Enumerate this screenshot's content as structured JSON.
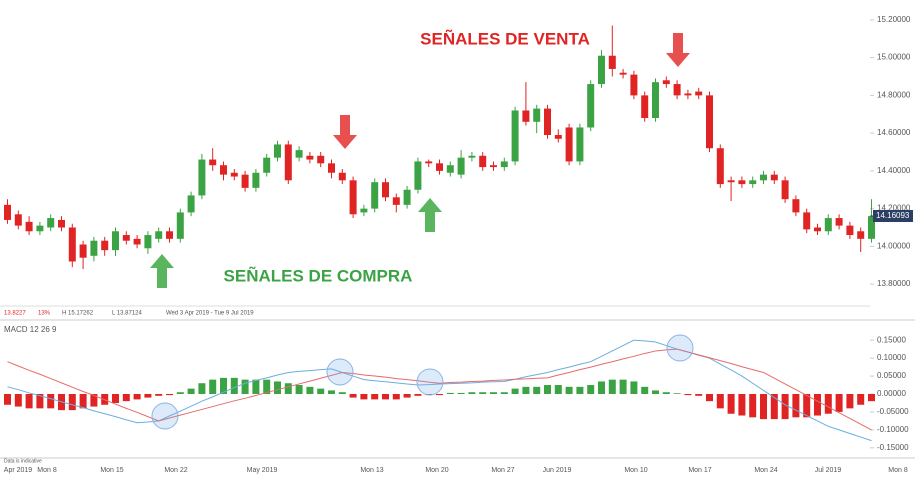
{
  "chart_data": {
    "type": "candlestick",
    "info": [
      "13.8227",
      "13%",
      "H 15.17262",
      "L 13.87124",
      "Wed 3 Apr 2019 - Tue 9 Jul 2019"
    ],
    "annotations": {
      "sell": "SEÑALES DE VENTA",
      "buy": "SEÑALES DE COMPRA"
    },
    "up_color": "#3ca344",
    "down_color": "#e02424",
    "ylim": [
      13.7,
      15.3
    ],
    "yticks": [
      {
        "value": 13.8,
        "label": "13.80000"
      },
      {
        "value": 14.0,
        "label": "14.00000"
      },
      {
        "value": 14.2,
        "label": "14.20000"
      },
      {
        "value": 14.4,
        "label": "14.40000"
      },
      {
        "value": 14.6,
        "label": "14.60000"
      },
      {
        "value": 14.8,
        "label": "14.80000"
      },
      {
        "value": 15.0,
        "label": "15.00000"
      },
      {
        "value": 15.2,
        "label": "15.20000"
      }
    ],
    "last_price": {
      "value": 14.16093,
      "label": "14.16093"
    },
    "x_labels": [
      "Apr 2019",
      "Mon 8",
      "Mon 15",
      "Mon 22",
      "May 2019",
      "Mon 13",
      "Mon 20",
      "Mon 27",
      "Jun 2019",
      "Mon 10",
      "Mon 17",
      "Mon 24",
      "Jul 2019",
      "Mon 8"
    ],
    "open": [
      14.22,
      14.17,
      14.13,
      14.08,
      14.1,
      14.14,
      14.1,
      14.01,
      13.95,
      14.03,
      13.98,
      14.06,
      14.04,
      13.99,
      14.04,
      14.08,
      14.04,
      14.18,
      14.27,
      14.46,
      14.43,
      14.39,
      14.38,
      14.31,
      14.39,
      14.47,
      14.54,
      14.47,
      14.48,
      14.48,
      14.44,
      14.39,
      14.35,
      14.18,
      14.2,
      14.34,
      14.26,
      14.22,
      14.3,
      14.45,
      14.44,
      14.39,
      14.38,
      14.47,
      14.48,
      14.43,
      14.42,
      14.45,
      14.72,
      14.66,
      14.73,
      14.59,
      14.63,
      14.45,
      14.63,
      14.86,
      15.01,
      14.92,
      14.91,
      14.8,
      14.68,
      14.88,
      14.86,
      14.81,
      14.82,
      14.8,
      14.52,
      14.35,
      14.35,
      14.33,
      14.35,
      14.38,
      14.35,
      14.25,
      14.18,
      14.1,
      14.08,
      14.15,
      14.11,
      14.08,
      14.04
    ],
    "high": [
      14.25,
      14.19,
      14.16,
      14.13,
      14.17,
      14.16,
      14.12,
      14.03,
      14.05,
      14.05,
      14.1,
      14.08,
      14.06,
      14.08,
      14.1,
      14.1,
      14.2,
      14.29,
      14.49,
      14.52,
      14.45,
      14.41,
      14.4,
      14.41,
      14.49,
      14.56,
      14.56,
      14.53,
      14.5,
      14.5,
      14.46,
      14.41,
      14.37,
      14.22,
      14.36,
      14.36,
      14.28,
      14.32,
      14.47,
      14.46,
      14.46,
      14.45,
      14.51,
      14.5,
      14.5,
      14.45,
      14.47,
      14.74,
      14.87,
      14.75,
      14.75,
      14.62,
      14.65,
      14.65,
      14.88,
      15.04,
      15.17,
      14.94,
      14.93,
      14.82,
      14.89,
      14.9,
      14.88,
      14.83,
      14.84,
      14.82,
      14.54,
      14.37,
      14.37,
      14.37,
      14.4,
      14.4,
      14.37,
      14.27,
      14.2,
      14.12,
      14.17,
      14.17,
      14.13,
      14.1,
      14.25
    ],
    "low": [
      14.12,
      14.09,
      14.06,
      14.06,
      14.08,
      14.08,
      13.89,
      13.88,
      13.92,
      13.95,
      13.95,
      14.01,
      13.99,
      13.96,
      14.02,
      14.02,
      14.02,
      14.16,
      14.25,
      14.4,
      14.35,
      14.35,
      14.29,
      14.29,
      14.37,
      14.45,
      14.33,
      14.45,
      14.44,
      14.42,
      14.36,
      14.33,
      14.15,
      14.16,
      14.18,
      14.24,
      14.18,
      14.2,
      14.28,
      14.42,
      14.38,
      14.37,
      14.36,
      14.45,
      14.4,
      14.4,
      14.4,
      14.43,
      14.64,
      14.6,
      14.57,
      14.55,
      14.43,
      14.43,
      14.61,
      14.84,
      14.9,
      14.89,
      14.78,
      14.66,
      14.66,
      14.84,
      14.78,
      14.78,
      14.78,
      14.5,
      14.31,
      14.24,
      14.31,
      14.31,
      14.33,
      14.33,
      14.23,
      14.16,
      14.07,
      14.06,
      14.06,
      14.09,
      14.04,
      13.97,
      14.02
    ],
    "close": [
      14.14,
      14.11,
      14.08,
      14.11,
      14.15,
      14.1,
      13.92,
      13.94,
      14.03,
      13.98,
      14.08,
      14.03,
      14.01,
      14.06,
      14.08,
      14.04,
      14.18,
      14.27,
      14.46,
      14.43,
      14.38,
      14.37,
      14.31,
      14.39,
      14.47,
      14.54,
      14.35,
      14.51,
      14.46,
      14.44,
      14.39,
      14.35,
      14.17,
      14.2,
      14.34,
      14.26,
      14.22,
      14.3,
      14.45,
      14.44,
      14.4,
      14.43,
      14.47,
      14.48,
      14.42,
      14.42,
      14.45,
      14.72,
      14.66,
      14.73,
      14.59,
      14.57,
      14.45,
      14.63,
      14.86,
      15.01,
      14.94,
      14.91,
      14.8,
      14.68,
      14.87,
      14.86,
      14.8,
      14.8,
      14.8,
      14.52,
      14.33,
      14.34,
      14.33,
      14.35,
      14.38,
      14.35,
      14.25,
      14.18,
      14.09,
      14.08,
      14.15,
      14.11,
      14.06,
      14.04,
      14.16
    ],
    "macd": {
      "title": "MACD  12  26  9",
      "ylim": [
        -0.17,
        0.17
      ],
      "yticks": [
        {
          "value": -0.15,
          "label": "-0.15000"
        },
        {
          "value": -0.1,
          "label": "-0.10000"
        },
        {
          "value": -0.05,
          "label": "-0.05000"
        },
        {
          "value": 0,
          "label": "0.00000"
        },
        {
          "value": 0.05,
          "label": "0.05000"
        },
        {
          "value": 0.1,
          "label": "0.10000"
        },
        {
          "value": 0.15,
          "label": "0.15000"
        }
      ],
      "histogram": [
        -0.03,
        -0.035,
        -0.04,
        -0.04,
        -0.04,
        -0.045,
        -0.045,
        -0.04,
        -0.035,
        -0.03,
        -0.025,
        -0.02,
        -0.015,
        -0.01,
        -0.005,
        -0.003,
        0.005,
        0.015,
        0.03,
        0.04,
        0.045,
        0.045,
        0.04,
        0.04,
        0.04,
        0.035,
        0.03,
        0.025,
        0.02,
        0.015,
        0.01,
        0.005,
        -0.01,
        -0.015,
        -0.015,
        -0.015,
        -0.015,
        -0.01,
        -0.005,
        -0.003,
        -0.003,
        0.003,
        0.003,
        0.005,
        0.005,
        0.005,
        0.005,
        0.015,
        0.02,
        0.02,
        0.025,
        0.025,
        0.02,
        0.02,
        0.025,
        0.035,
        0.04,
        0.04,
        0.035,
        0.02,
        0.01,
        0.005,
        0.002,
        -0.003,
        -0.005,
        -0.02,
        -0.04,
        -0.055,
        -0.06,
        -0.065,
        -0.07,
        -0.07,
        -0.07,
        -0.065,
        -0.065,
        -0.06,
        -0.055,
        -0.05,
        -0.04,
        -0.03,
        -0.02
      ],
      "series": [
        {
          "color": "#6aaee0",
          "values": [
            0.02,
            0.012,
            0.003,
            -0.005,
            -0.013,
            -0.022,
            -0.03,
            -0.038,
            -0.047,
            -0.055,
            -0.063,
            -0.072,
            -0.08,
            -0.078,
            -0.075,
            -0.061,
            -0.048,
            -0.034,
            -0.02,
            -0.008,
            0.005,
            0.018,
            0.03,
            0.038,
            0.045,
            0.053,
            0.06,
            0.063,
            0.065,
            0.068,
            0.07,
            0.06,
            0.05,
            0.04,
            0.037,
            0.034,
            0.031,
            0.028,
            0.025,
            0.026,
            0.028,
            0.029,
            0.03,
            0.031,
            0.033,
            0.034,
            0.035,
            0.041,
            0.048,
            0.054,
            0.06,
            0.068,
            0.075,
            0.083,
            0.09,
            0.105,
            0.12,
            0.135,
            0.15,
            0.148,
            0.145,
            0.135,
            0.125,
            0.117,
            0.108,
            0.1,
            0.083,
            0.067,
            0.05,
            0.03,
            0.01,
            -0.01,
            -0.03,
            -0.045,
            -0.06,
            -0.075,
            -0.09,
            -0.1,
            -0.11,
            -0.12,
            -0.13
          ]
        },
        {
          "color": "#e86a6a",
          "values": [
            0.09,
            0.078,
            0.066,
            0.055,
            0.043,
            0.031,
            0.019,
            0.007,
            -0.004,
            -0.016,
            -0.028,
            -0.04,
            -0.051,
            -0.063,
            -0.075,
            -0.067,
            -0.059,
            -0.051,
            -0.043,
            -0.035,
            -0.027,
            -0.019,
            -0.012,
            -0.004,
            0.004,
            0.012,
            0.02,
            0.028,
            0.036,
            0.044,
            0.052,
            0.06,
            0.057,
            0.053,
            0.05,
            0.047,
            0.043,
            0.04,
            0.037,
            0.033,
            0.03,
            0.032,
            0.033,
            0.035,
            0.036,
            0.038,
            0.039,
            0.041,
            0.042,
            0.044,
            0.045,
            0.053,
            0.06,
            0.068,
            0.075,
            0.083,
            0.09,
            0.098,
            0.105,
            0.113,
            0.12,
            0.123,
            0.125,
            0.117,
            0.109,
            0.101,
            0.093,
            0.085,
            0.076,
            0.068,
            0.06,
            0.044,
            0.028,
            0.012,
            -0.004,
            -0.02,
            -0.036,
            -0.052,
            -0.068,
            -0.084,
            -0.1
          ]
        }
      ]
    }
  }
}
